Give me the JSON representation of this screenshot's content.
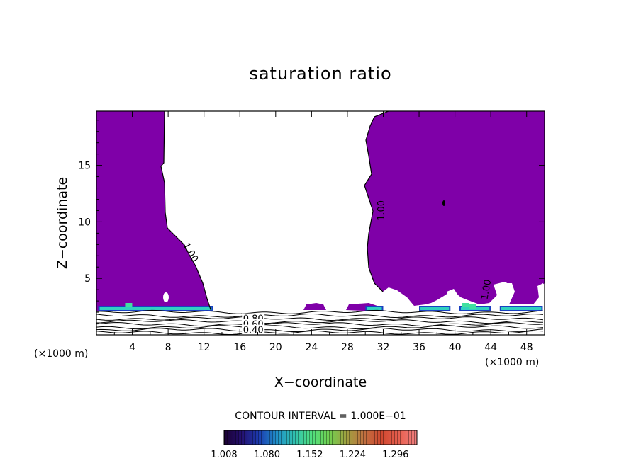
{
  "chart_data": {
    "type": "contour",
    "title": "saturation ratio",
    "xlabel": "X−coordinate",
    "ylabel": "Z−coordinate",
    "x_unit_left": "(×1000 m)",
    "x_unit_right": "(×1000 m)",
    "xlim": [
      0,
      50
    ],
    "ylim": [
      0,
      19.8
    ],
    "x_ticks": [
      "4",
      "8",
      "12",
      "16",
      "20",
      "24",
      "28",
      "32",
      "36",
      "40",
      "44",
      "48"
    ],
    "x_tick_values": [
      4,
      8,
      12,
      16,
      20,
      24,
      28,
      32,
      36,
      40,
      44,
      48
    ],
    "y_ticks": [
      "5",
      "10",
      "15"
    ],
    "y_tick_values": [
      5,
      10,
      15
    ],
    "contour_interval_text": "CONTOUR INTERVAL = 1.000E−01",
    "fill_color": "#7f00a8",
    "colorbar": {
      "min": 1.008,
      "max": 1.332,
      "labels": [
        "1.008",
        "1.080",
        "1.152",
        "1.224",
        "1.296"
      ],
      "label_values": [
        1.008,
        1.08,
        1.152,
        1.224,
        1.296
      ],
      "colors": [
        "#1a0030",
        "#241070",
        "#1c3cb0",
        "#2090c8",
        "#30c0b0",
        "#50e080",
        "#70d050",
        "#a0a040",
        "#c07040",
        "#d04830",
        "#e86050",
        "#f08080"
      ]
    },
    "contour_labels": [
      {
        "text": "1.00",
        "x": 10.5,
        "z": 7.3,
        "angle": 60
      },
      {
        "text": "1.00",
        "x": 31.8,
        "z": 11.0,
        "angle": -90
      },
      {
        "text": "1.00",
        "x": 43.5,
        "z": 4.0,
        "angle": -80
      },
      {
        "text": "0.80",
        "x": 17.5,
        "z": 1.4,
        "angle": 0
      },
      {
        "text": "0.60",
        "x": 17.5,
        "z": 0.9,
        "angle": 0
      },
      {
        "text": "0.40",
        "x": 17.5,
        "z": 0.4,
        "angle": 0
      }
    ]
  }
}
